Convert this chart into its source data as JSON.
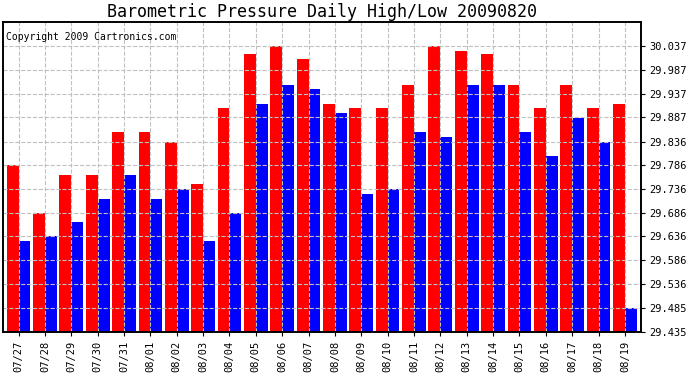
{
  "title": "Barometric Pressure Daily High/Low 20090820",
  "copyright": "Copyright 2009 Cartronics.com",
  "dates": [
    "07/27",
    "07/28",
    "07/29",
    "07/30",
    "07/31",
    "08/01",
    "08/02",
    "08/03",
    "08/04",
    "08/05",
    "08/06",
    "08/07",
    "08/08",
    "08/09",
    "08/10",
    "08/11",
    "08/12",
    "08/13",
    "08/14",
    "08/15",
    "08/16",
    "08/17",
    "08/18",
    "08/19"
  ],
  "highs": [
    29.786,
    29.686,
    29.766,
    29.766,
    29.856,
    29.856,
    29.836,
    29.746,
    29.906,
    30.02,
    30.037,
    30.01,
    29.916,
    29.906,
    29.906,
    29.956,
    30.037,
    30.026,
    30.02,
    29.956,
    29.906,
    29.956,
    29.906,
    29.916
  ],
  "lows": [
    29.626,
    29.636,
    29.666,
    29.716,
    29.766,
    29.716,
    29.736,
    29.626,
    29.686,
    29.916,
    29.956,
    29.946,
    29.896,
    29.726,
    29.736,
    29.856,
    29.846,
    29.956,
    29.956,
    29.856,
    29.806,
    29.886,
    29.836,
    29.486
  ],
  "ymin": 29.435,
  "ymax": 30.087,
  "yticks": [
    29.435,
    29.485,
    29.536,
    29.586,
    29.636,
    29.686,
    29.736,
    29.786,
    29.836,
    29.887,
    29.937,
    29.987,
    30.037
  ],
  "ytick_labels": [
    "29.435",
    "29.485",
    "29.536",
    "29.586",
    "29.636",
    "29.686",
    "29.736",
    "29.786",
    "29.836",
    "29.887",
    "29.937",
    "29.987",
    "30.037"
  ],
  "bar_color_high": "#ff0000",
  "bar_color_low": "#0000ff",
  "bg_color": "#ffffff",
  "grid_color": "#c0c0c0",
  "title_fontsize": 12,
  "copyright_fontsize": 7,
  "tick_fontsize": 7.5
}
